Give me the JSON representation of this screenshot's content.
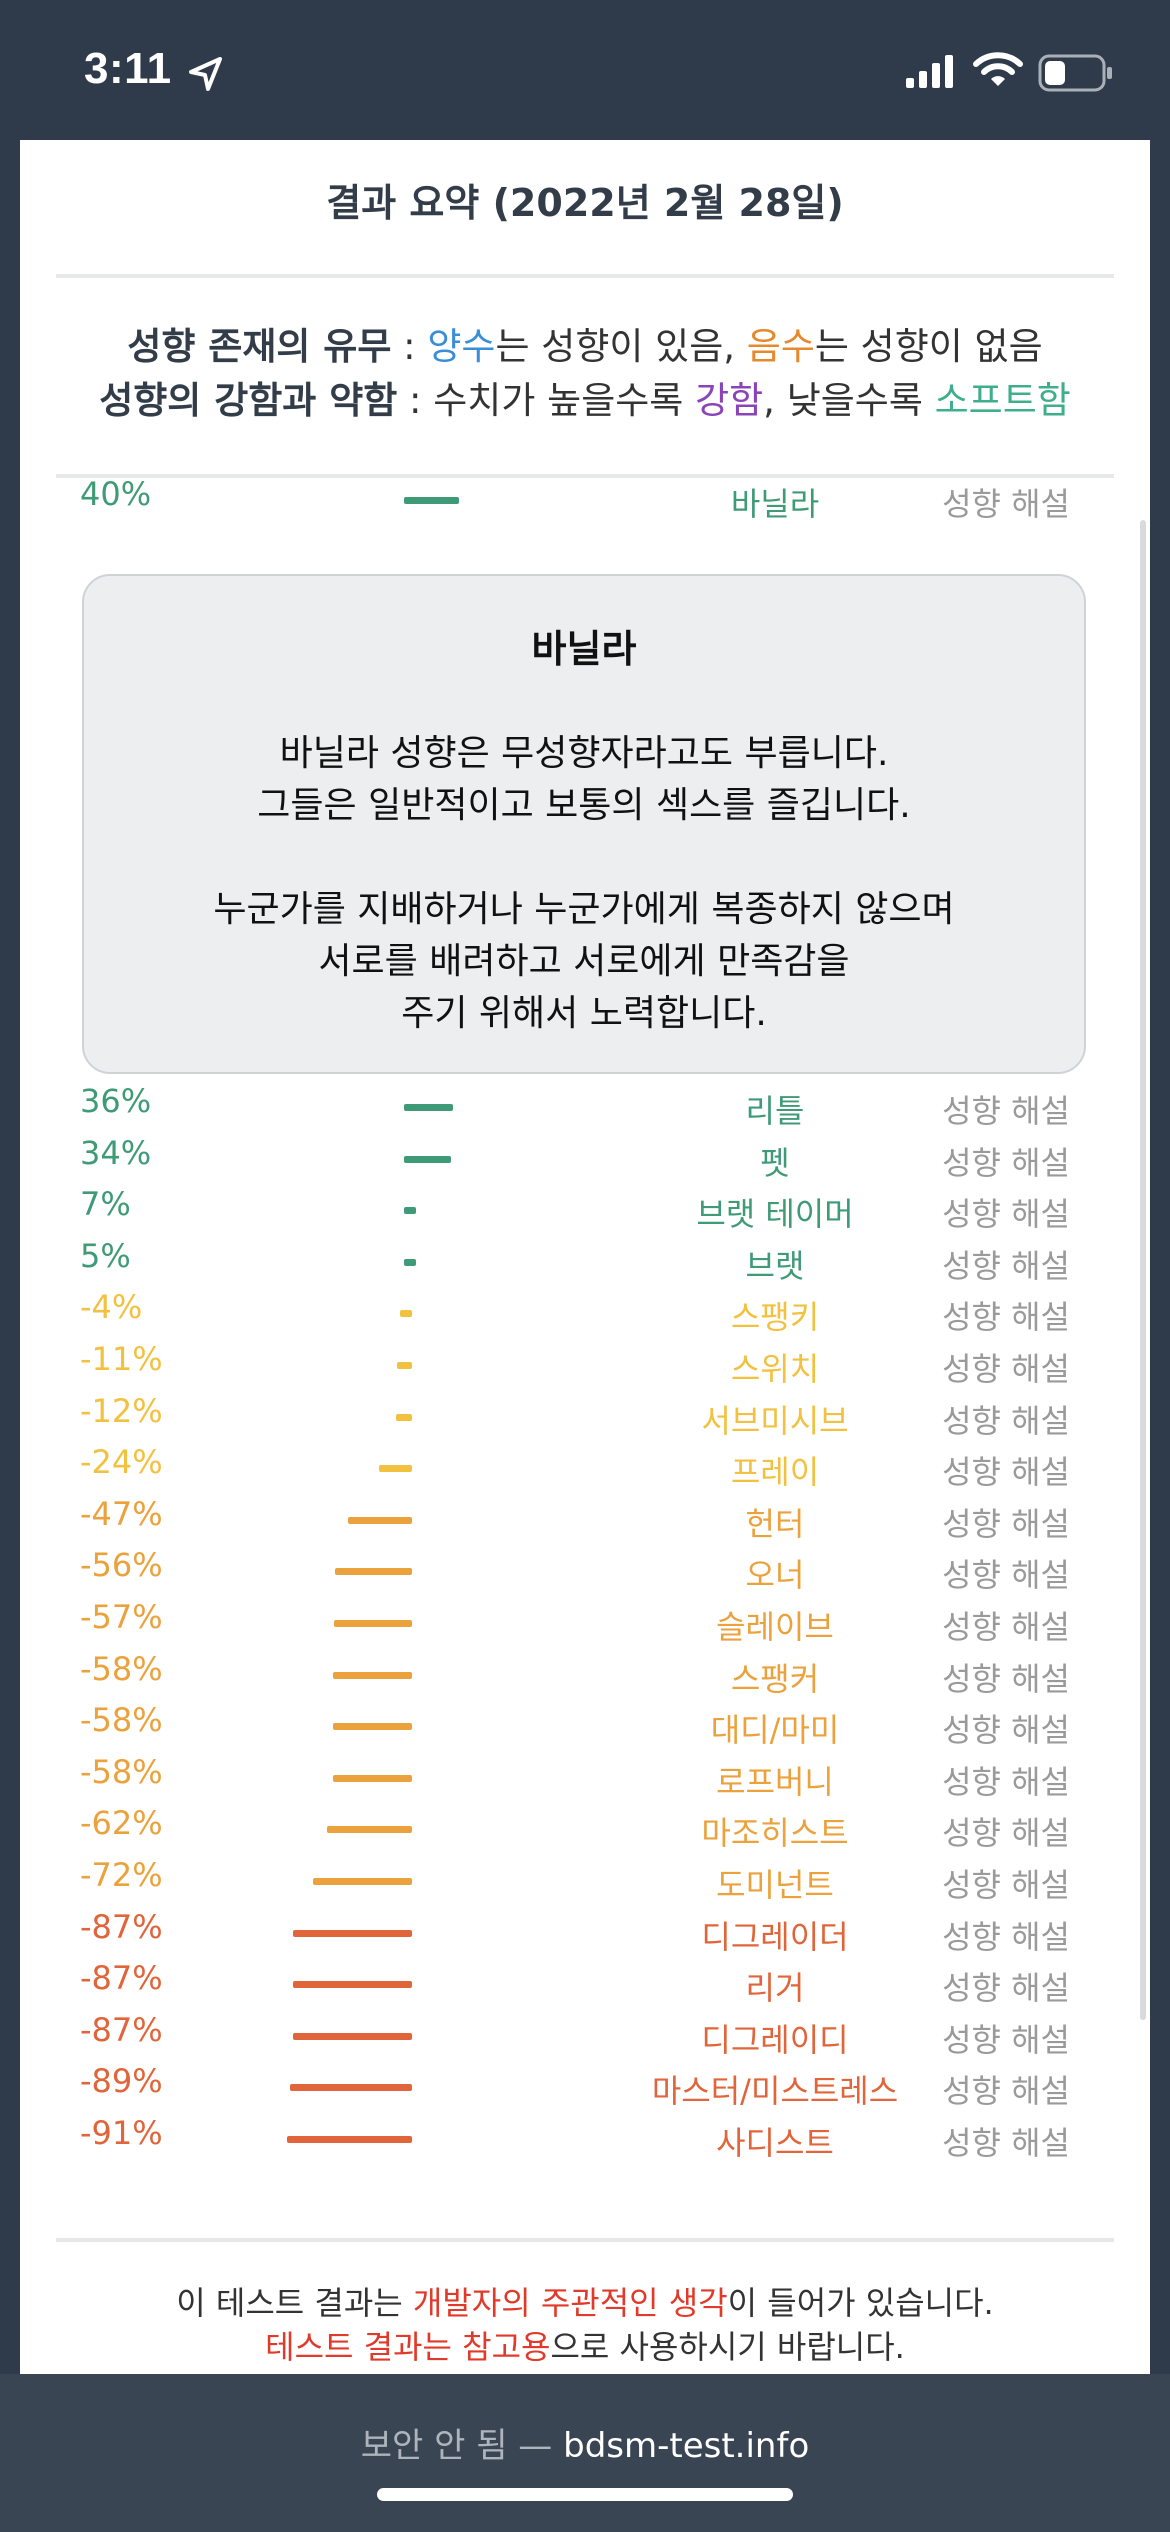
{
  "status_bar": {
    "time": "3:11"
  },
  "header": {
    "title": "결과 요약 (2022년 2월 28일)"
  },
  "legend": {
    "line1_label": "성향 존재의 유무",
    "line1_sep": " : ",
    "line1_pos": "양수",
    "line1_mid": "는 성향이 있음, ",
    "line1_neg": "음수",
    "line1_end": "는 성향이 없음",
    "line2_label": "성향의 강함과 약함",
    "line2_sep": " : 수치가 높을수록 ",
    "line2_strong": "강함",
    "line2_mid": ", 낮을수록 ",
    "line2_soft": "소프트함"
  },
  "explain_label": "성향 해설",
  "results": [
    {
      "percent": "40%",
      "value": 40,
      "name": "바닐라",
      "color": "#3f9a78"
    },
    {
      "percent": "36%",
      "value": 36,
      "name": "리틀",
      "color": "#3f9a78"
    },
    {
      "percent": "34%",
      "value": 34,
      "name": "펫",
      "color": "#3f9a78"
    },
    {
      "percent": "7%",
      "value": 7,
      "name": "브랫 테이머",
      "color": "#3f9a78"
    },
    {
      "percent": "5%",
      "value": 5,
      "name": "브랫",
      "color": "#3f9a78"
    },
    {
      "percent": "-4%",
      "value": -4,
      "name": "스팽키",
      "color": "#f2c140"
    },
    {
      "percent": "-11%",
      "value": -11,
      "name": "스위치",
      "color": "#f2c140"
    },
    {
      "percent": "-12%",
      "value": -12,
      "name": "서브미시브",
      "color": "#f2c140"
    },
    {
      "percent": "-24%",
      "value": -24,
      "name": "프레이",
      "color": "#f2c140"
    },
    {
      "percent": "-47%",
      "value": -47,
      "name": "헌터",
      "color": "#eba23c"
    },
    {
      "percent": "-56%",
      "value": -56,
      "name": "오너",
      "color": "#eba23c"
    },
    {
      "percent": "-57%",
      "value": -57,
      "name": "슬레이브",
      "color": "#eba23c"
    },
    {
      "percent": "-58%",
      "value": -58,
      "name": "스팽커",
      "color": "#eba23c"
    },
    {
      "percent": "-58%",
      "value": -58,
      "name": "대디/마미",
      "color": "#eba23c"
    },
    {
      "percent": "-58%",
      "value": -58,
      "name": "로프버니",
      "color": "#eba23c"
    },
    {
      "percent": "-62%",
      "value": -62,
      "name": "마조히스트",
      "color": "#eba23c"
    },
    {
      "percent": "-72%",
      "value": -72,
      "name": "도미넌트",
      "color": "#eba23c"
    },
    {
      "percent": "-87%",
      "value": -87,
      "name": "디그레이더",
      "color": "#e0653a"
    },
    {
      "percent": "-87%",
      "value": -87,
      "name": "리거",
      "color": "#e0653a"
    },
    {
      "percent": "-87%",
      "value": -87,
      "name": "디그레이디",
      "color": "#e0653a"
    },
    {
      "percent": "-89%",
      "value": -89,
      "name": "마스터/미스트레스",
      "color": "#e0653a"
    },
    {
      "percent": "-91%",
      "value": -91,
      "name": "사디스트",
      "color": "#e0653a"
    }
  ],
  "description": {
    "title": "바닐라",
    "lines": [
      "바닐라 성향은 무성향자라고도 부릅니다.",
      "그들은 일반적이고 보통의 섹스를 즐깁니다.",
      "",
      "누군가를 지배하거나 누군가에게 복종하지 않으며",
      "서로를 배려하고 서로에게 만족감을",
      "주기 위해서 노력합니다."
    ]
  },
  "footer_note": {
    "l1_pre": "이 테스트 결과는 ",
    "l1_red": "개발자의 주관적인 생각",
    "l1_post": "이 들어가 있습니다.",
    "l2_red": "테스트 결과는 참고용",
    "l2_post": "으로 사용하시기 바랍니다."
  },
  "browser_bar": {
    "security": "보안 안 됨 —",
    "domain": "bdsm-test.info"
  }
}
